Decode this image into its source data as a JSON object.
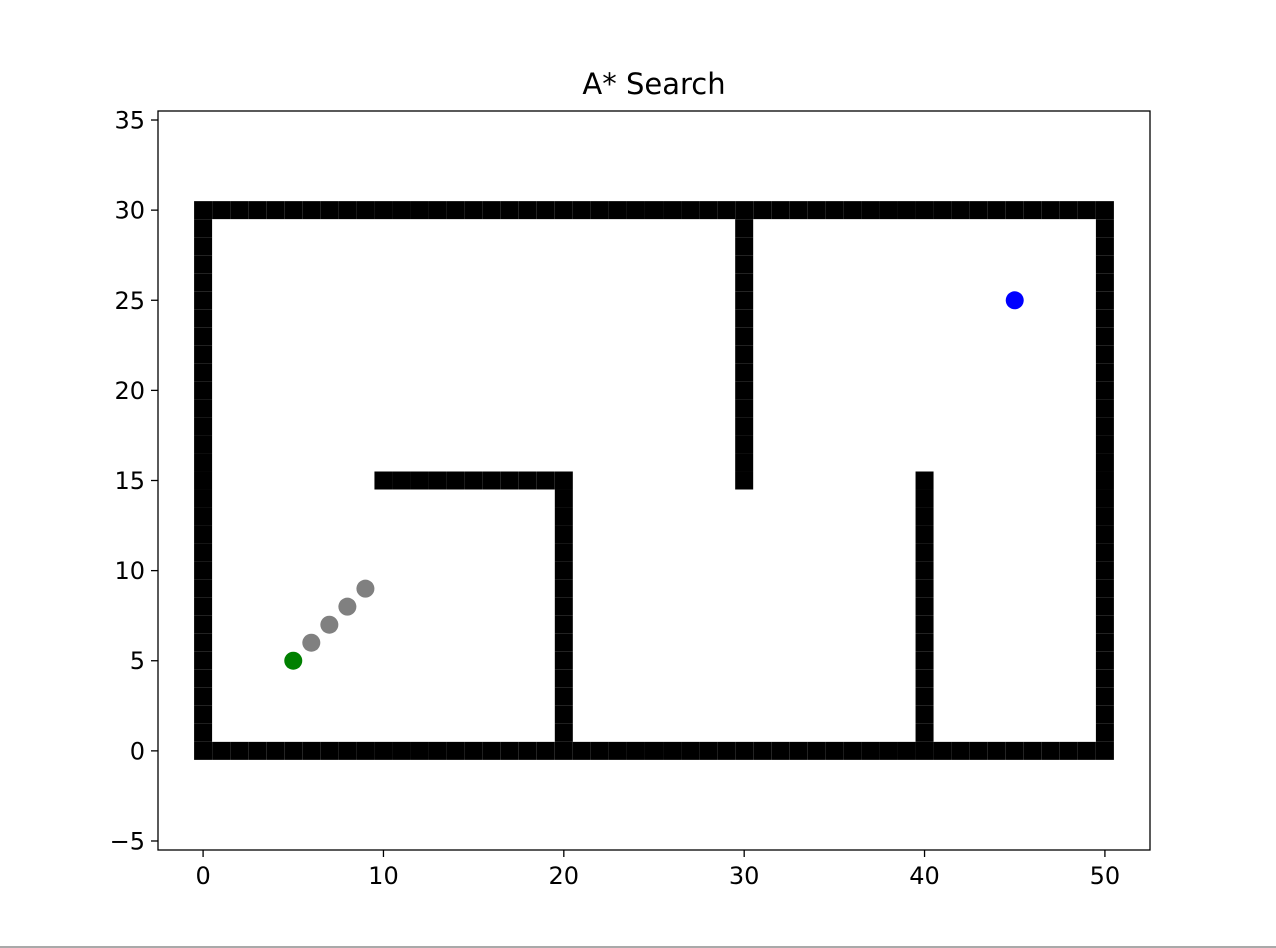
{
  "chart_data": {
    "type": "scatter",
    "title": "A* Search",
    "xlabel": "",
    "ylabel": "",
    "xlim": [
      -2.5,
      52.5
    ],
    "ylim": [
      -5.5,
      35.5
    ],
    "x_ticks": [
      0,
      10,
      20,
      30,
      40,
      50
    ],
    "y_ticks": [
      -5,
      0,
      5,
      10,
      15,
      20,
      25,
      30,
      35
    ],
    "x_tick_labels": [
      "0",
      "10",
      "20",
      "30",
      "40",
      "50"
    ],
    "y_tick_labels": [
      "−5",
      "0",
      "5",
      "10",
      "15",
      "20",
      "25",
      "30",
      "35"
    ],
    "grid": false,
    "series": [
      {
        "marker": "square",
        "color": "#000000",
        "segments": [
          {
            "x1": 0,
            "y1": 0,
            "x2": 50,
            "y2": 0
          },
          {
            "x1": 0,
            "y1": 30,
            "x2": 50,
            "y2": 30
          },
          {
            "x1": 0,
            "y1": 0,
            "x2": 0,
            "y2": 30
          },
          {
            "x1": 50,
            "y1": 0,
            "x2": 50,
            "y2": 30
          },
          {
            "x1": 10,
            "y1": 15,
            "x2": 20,
            "y2": 15
          },
          {
            "x1": 20,
            "y1": 0,
            "x2": 20,
            "y2": 15
          },
          {
            "x1": 30,
            "y1": 15,
            "x2": 30,
            "y2": 30
          },
          {
            "x1": 40,
            "y1": 0,
            "x2": 40,
            "y2": 15
          }
        ]
      },
      {
        "marker": "circle",
        "color": "#808080",
        "points": [
          {
            "x": 6,
            "y": 6
          },
          {
            "x": 7,
            "y": 7
          },
          {
            "x": 8,
            "y": 8
          },
          {
            "x": 9,
            "y": 9
          }
        ]
      },
      {
        "marker": "circle",
        "color": "#008000",
        "points": [
          {
            "x": 5,
            "y": 5
          }
        ]
      },
      {
        "marker": "circle",
        "color": "#0000ff",
        "points": [
          {
            "x": 45,
            "y": 25
          }
        ]
      }
    ]
  }
}
